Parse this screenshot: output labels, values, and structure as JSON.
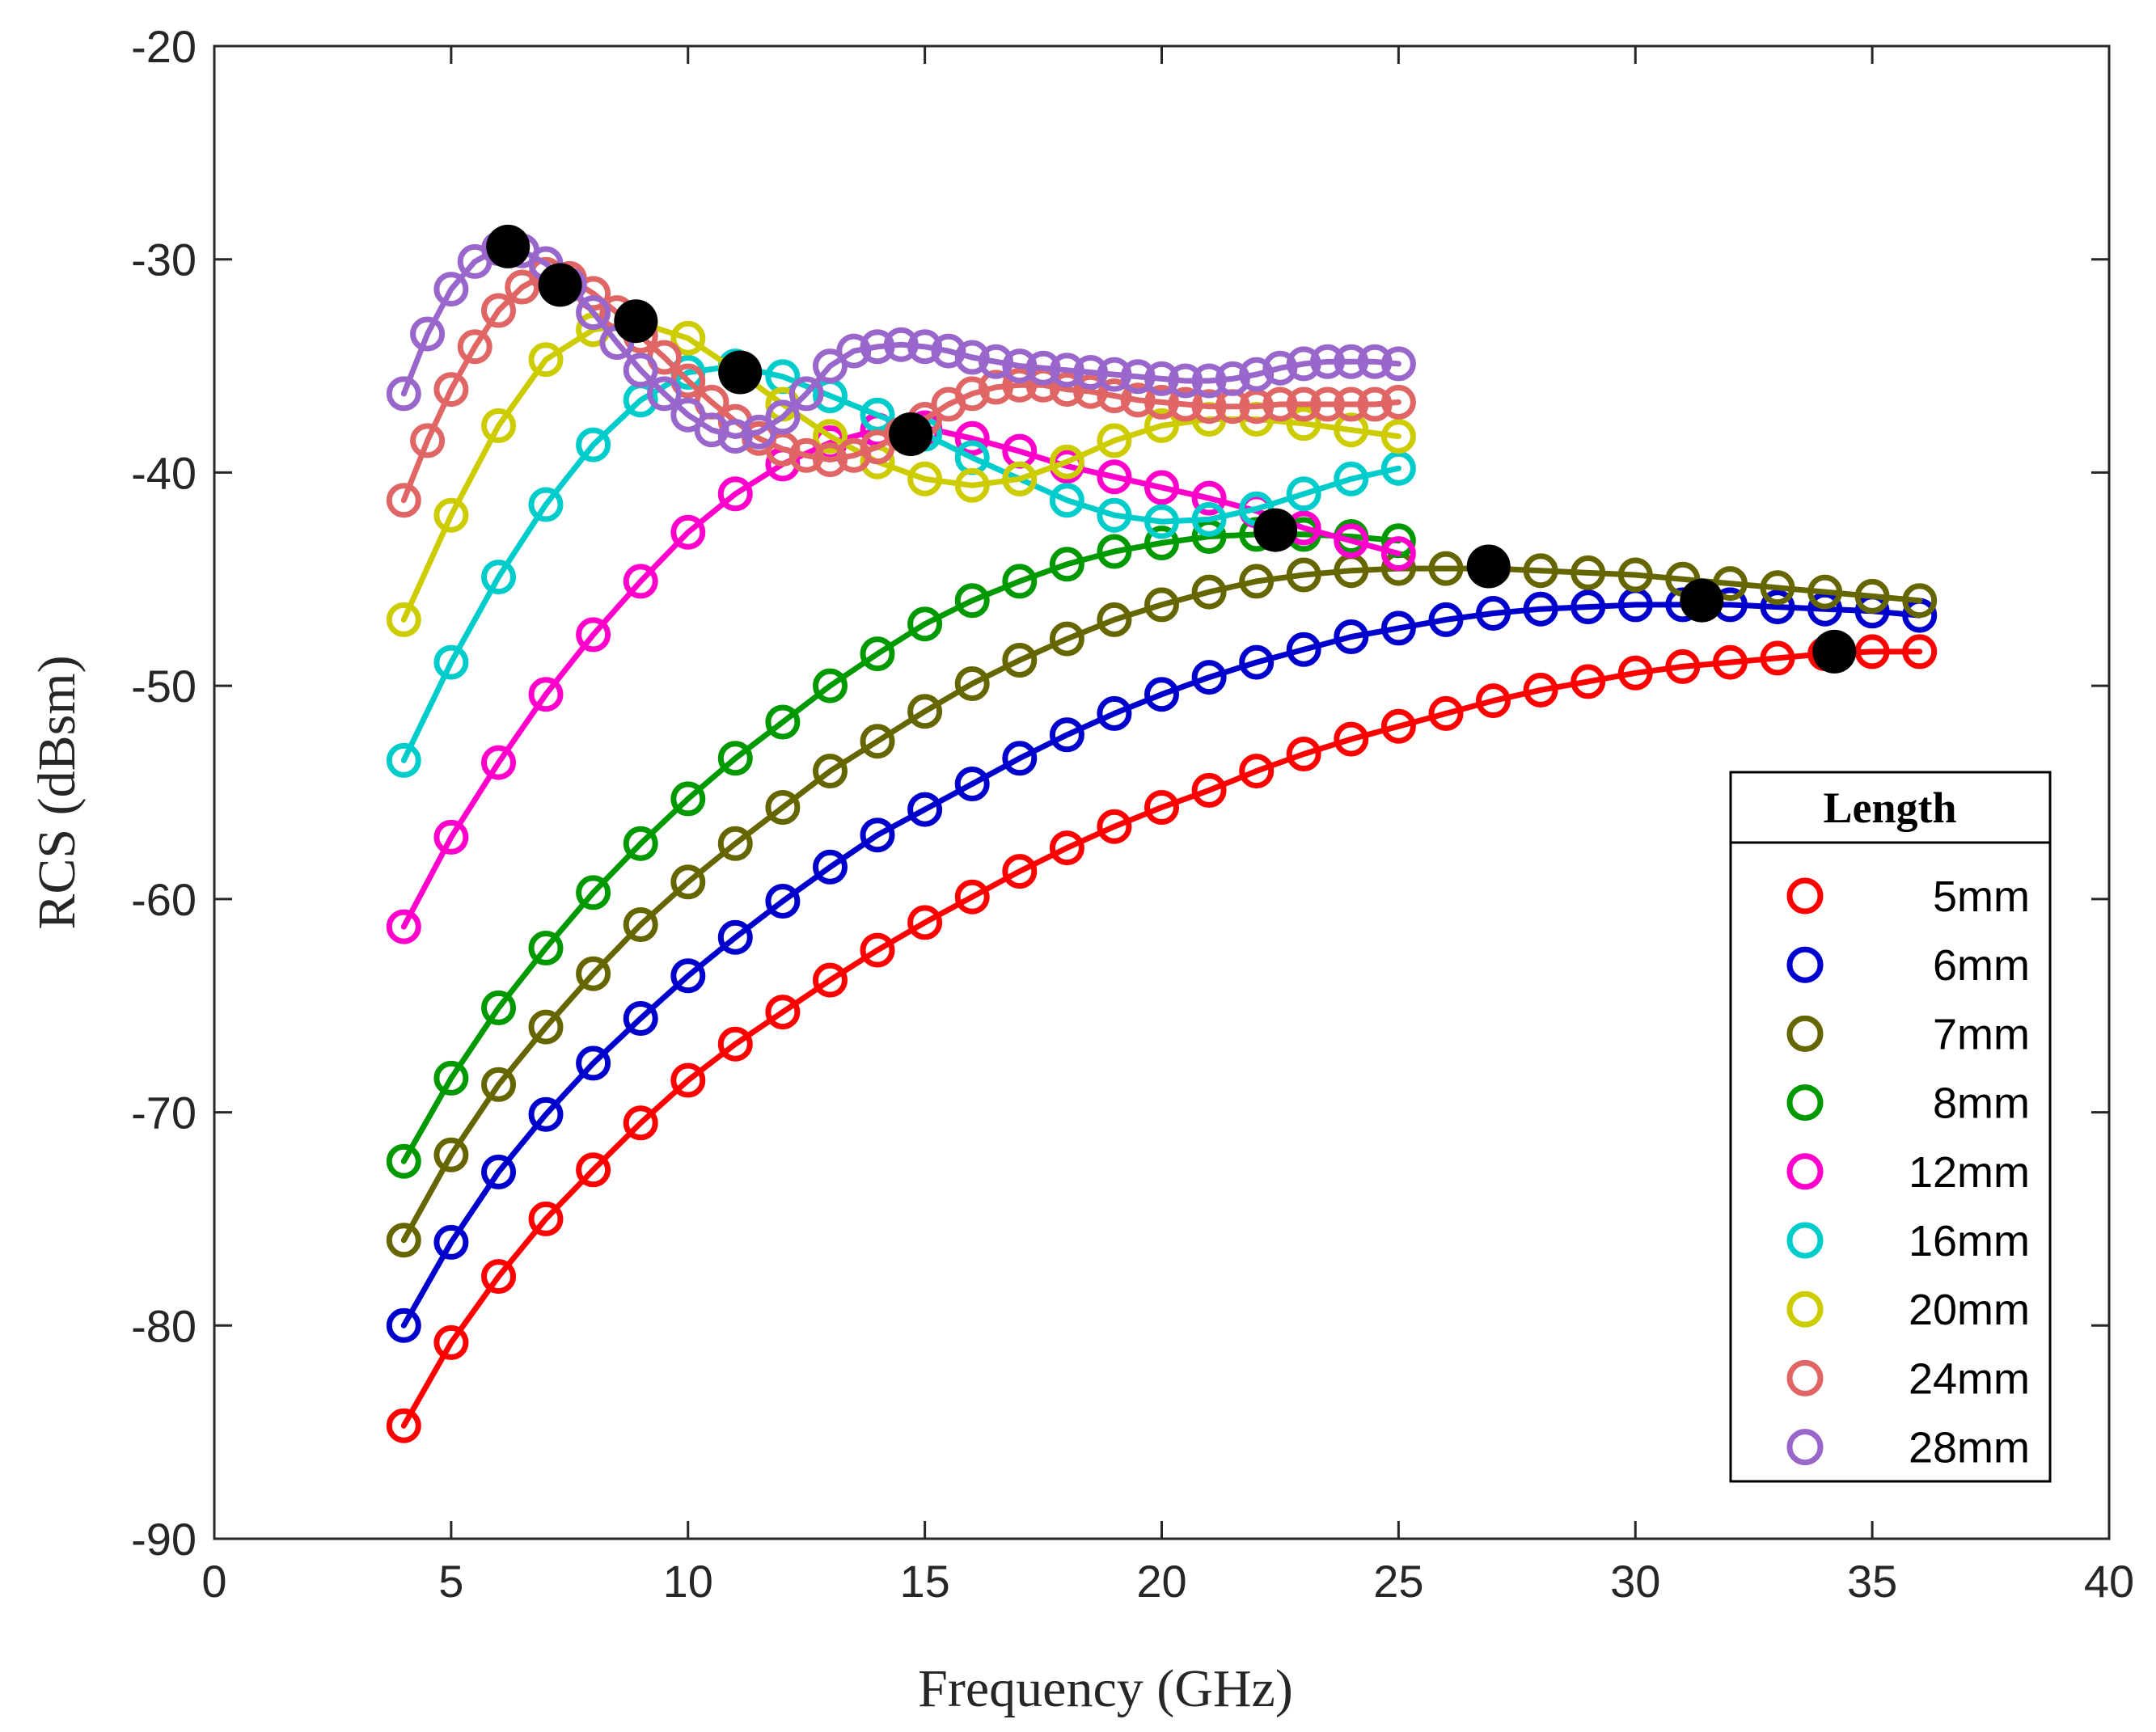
{
  "chart_data": {
    "type": "line",
    "title": "",
    "xlabel": "Frequency (GHz)",
    "ylabel": "RCS (dBsm)",
    "xlim": [
      0,
      40
    ],
    "ylim": [
      -90,
      -20
    ],
    "xticks": [
      0,
      5,
      10,
      15,
      20,
      25,
      30,
      35,
      40
    ],
    "yticks": [
      -90,
      -80,
      -70,
      -60,
      -50,
      -40,
      -30,
      -20
    ],
    "legend": {
      "title": "Length",
      "position": "right"
    },
    "series": [
      {
        "name": "5mm",
        "color": "#ff0000",
        "x": [
          4,
          5,
          6,
          7,
          8,
          9,
          10,
          11,
          12,
          13,
          14,
          15,
          16,
          17,
          18,
          19,
          20,
          21,
          22,
          23,
          24,
          25,
          26,
          27,
          28,
          29,
          30,
          31,
          32,
          33,
          34,
          35,
          36
        ],
        "y": [
          -84.7,
          -80.8,
          -77.7,
          -75.0,
          -72.7,
          -70.5,
          -68.5,
          -66.8,
          -65.3,
          -63.8,
          -62.4,
          -61.1,
          -59.9,
          -58.7,
          -57.6,
          -56.6,
          -55.7,
          -54.9,
          -54.0,
          -53.2,
          -52.5,
          -51.9,
          -51.3,
          -50.7,
          -50.2,
          -49.8,
          -49.4,
          -49.1,
          -48.9,
          -48.7,
          -48.5,
          -48.4,
          -48.4
        ]
      },
      {
        "name": "6mm",
        "color": "#0000cc",
        "x": [
          4,
          5,
          6,
          7,
          8,
          9,
          10,
          11,
          12,
          13,
          14,
          15,
          16,
          17,
          18,
          19,
          20,
          21,
          22,
          23,
          24,
          25,
          26,
          27,
          28,
          29,
          30,
          31,
          32,
          33,
          34,
          35,
          36
        ],
        "y": [
          -80.0,
          -76.1,
          -72.8,
          -70.1,
          -67.7,
          -65.6,
          -63.6,
          -61.8,
          -60.1,
          -58.5,
          -57.0,
          -55.8,
          -54.6,
          -53.4,
          -52.3,
          -51.3,
          -50.4,
          -49.6,
          -48.9,
          -48.3,
          -47.7,
          -47.3,
          -46.9,
          -46.6,
          -46.4,
          -46.3,
          -46.2,
          -46.2,
          -46.2,
          -46.3,
          -46.4,
          -46.5,
          -46.7
        ]
      },
      {
        "name": "7mm",
        "color": "#666600",
        "x": [
          4,
          5,
          6,
          7,
          8,
          9,
          10,
          11,
          12,
          13,
          14,
          15,
          16,
          17,
          18,
          19,
          20,
          21,
          22,
          23,
          24,
          25,
          26,
          27,
          28,
          29,
          30,
          31,
          32,
          33,
          34,
          35,
          36
        ],
        "y": [
          -76.0,
          -72.0,
          -68.7,
          -66.0,
          -63.5,
          -61.2,
          -59.2,
          -57.4,
          -55.7,
          -54.0,
          -52.6,
          -51.2,
          -49.9,
          -48.8,
          -47.8,
          -46.9,
          -46.2,
          -45.6,
          -45.1,
          -44.8,
          -44.6,
          -44.5,
          -44.5,
          -44.5,
          -44.6,
          -44.7,
          -44.8,
          -45.0,
          -45.2,
          -45.4,
          -45.6,
          -45.8,
          -46.0
        ]
      },
      {
        "name": "8mm",
        "color": "#009900",
        "x": [
          4,
          5,
          6,
          7,
          8,
          9,
          10,
          11,
          12,
          13,
          14,
          15,
          16,
          17,
          18,
          19,
          20,
          21,
          22,
          23,
          24,
          25
        ],
        "y": [
          -72.3,
          -68.4,
          -65.1,
          -62.3,
          -59.7,
          -57.4,
          -55.3,
          -53.4,
          -51.7,
          -50.0,
          -48.5,
          -47.1,
          -46.0,
          -45.1,
          -44.3,
          -43.7,
          -43.3,
          -43.0,
          -42.9,
          -42.9,
          -43.0,
          -43.2
        ]
      },
      {
        "name": "12mm",
        "color": "#ff00cc",
        "x": [
          4,
          5,
          6,
          7,
          8,
          9,
          10,
          11,
          12,
          13,
          14,
          15,
          16,
          17,
          18,
          19,
          20,
          21,
          22,
          23,
          24,
          25
        ],
        "y": [
          -61.3,
          -57.1,
          -53.6,
          -50.4,
          -47.6,
          -45.1,
          -42.8,
          -41.0,
          -39.6,
          -38.6,
          -38.0,
          -37.9,
          -38.4,
          -39.0,
          -39.7,
          -40.2,
          -40.7,
          -41.2,
          -41.8,
          -42.6,
          -43.2,
          -43.8
        ]
      },
      {
        "name": "16mm",
        "color": "#00cccc",
        "x": [
          4,
          5,
          6,
          7,
          8,
          9,
          10,
          11,
          12,
          13,
          14,
          15,
          16,
          17,
          18,
          19,
          20,
          21,
          22,
          23,
          24,
          25
        ],
        "y": [
          -53.5,
          -48.9,
          -44.9,
          -41.5,
          -38.7,
          -36.6,
          -35.3,
          -35.0,
          -35.5,
          -36.4,
          -37.3,
          -38.2,
          -39.3,
          -40.3,
          -41.3,
          -42.0,
          -42.3,
          -42.2,
          -41.7,
          -41.0,
          -40.3,
          -39.8
        ]
      },
      {
        "name": "20mm",
        "color": "#cccc00",
        "x": [
          4,
          5,
          6,
          7,
          8,
          9,
          10,
          11,
          12,
          13,
          14,
          15,
          16,
          17,
          18,
          19,
          20,
          21,
          22,
          23,
          24,
          25
        ],
        "y": [
          -46.9,
          -42.0,
          -37.8,
          -34.7,
          -33.3,
          -33.0,
          -33.7,
          -35.2,
          -36.8,
          -38.3,
          -39.5,
          -40.3,
          -40.6,
          -40.3,
          -39.5,
          -38.5,
          -37.8,
          -37.5,
          -37.5,
          -37.7,
          -38.0,
          -38.3
        ]
      },
      {
        "name": "24mm",
        "color": "#e06666",
        "x": [
          4,
          4.5,
          5,
          5.5,
          6,
          6.5,
          7,
          7.5,
          8,
          8.5,
          9,
          9.5,
          10,
          10.5,
          11,
          11.5,
          12,
          12.5,
          13,
          13.5,
          14,
          14.5,
          15,
          15.5,
          16,
          16.5,
          17,
          17.5,
          18,
          18.5,
          19,
          19.5,
          20,
          20.5,
          21,
          21.5,
          22,
          22.5,
          23,
          23.5,
          24,
          24.5,
          25
        ],
        "y": [
          -41.3,
          -38.5,
          -36.1,
          -34.1,
          -32.4,
          -31.3,
          -30.7,
          -30.9,
          -31.6,
          -32.5,
          -33.6,
          -34.6,
          -35.7,
          -36.7,
          -37.6,
          -38.4,
          -38.9,
          -39.2,
          -39.4,
          -39.2,
          -38.8,
          -38.2,
          -37.5,
          -36.8,
          -36.3,
          -36.0,
          -35.9,
          -35.9,
          -36.1,
          -36.2,
          -36.4,
          -36.6,
          -36.7,
          -36.8,
          -36.9,
          -36.9,
          -36.9,
          -36.8,
          -36.8,
          -36.8,
          -36.8,
          -36.8,
          -36.7
        ]
      },
      {
        "name": "28mm",
        "color": "#9966cc",
        "x": [
          4,
          4.5,
          5,
          5.5,
          6,
          6.5,
          7,
          7.5,
          8,
          8.5,
          9,
          9.5,
          10,
          10.5,
          11,
          11.5,
          12,
          12.5,
          13,
          13.5,
          14,
          14.5,
          15,
          15.5,
          16,
          16.5,
          17,
          17.5,
          18,
          18.5,
          19,
          19.5,
          20,
          20.5,
          21,
          21.5,
          22,
          22.5,
          23,
          23.5,
          24,
          24.5,
          25
        ],
        "y": [
          -36.3,
          -33.5,
          -31.4,
          -30.1,
          -29.5,
          -29.6,
          -30.2,
          -31.2,
          -32.5,
          -33.9,
          -35.2,
          -36.3,
          -37.3,
          -38.0,
          -38.3,
          -38.1,
          -37.4,
          -36.3,
          -35.0,
          -34.3,
          -34.1,
          -34.0,
          -34.1,
          -34.3,
          -34.6,
          -34.8,
          -35.0,
          -35.1,
          -35.2,
          -35.3,
          -35.4,
          -35.5,
          -35.6,
          -35.7,
          -35.7,
          -35.6,
          -35.4,
          -35.1,
          -34.9,
          -34.8,
          -34.8,
          -34.8,
          -34.9
        ]
      }
    ],
    "highlight_points": {
      "color": "#000000",
      "x": [
        6.2,
        7.3,
        8.9,
        11.1,
        14.7,
        22.4,
        26.9,
        31.4,
        34.2
      ],
      "y": [
        -29.4,
        -31.2,
        -32.9,
        -35.3,
        -38.2,
        -42.7,
        -44.4,
        -46.0,
        -48.4
      ]
    }
  }
}
